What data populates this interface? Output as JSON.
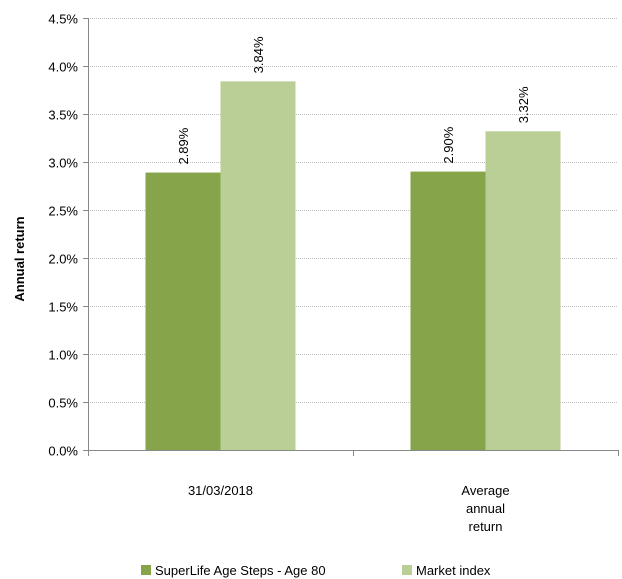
{
  "chart_data": {
    "type": "bar",
    "categories": [
      [
        "31/03/2018"
      ],
      [
        "Average",
        "annual",
        "return"
      ]
    ],
    "series": [
      {
        "name": "SuperLife Age Steps - Age 80",
        "values": [
          2.89,
          2.9
        ],
        "labels": [
          "2.89%",
          "2.90%"
        ],
        "color": "#86a44a"
      },
      {
        "name": "Market index",
        "values": [
          3.84,
          3.32
        ],
        "labels": [
          "3.84%",
          "3.32%"
        ],
        "color": "#b9cf96"
      }
    ],
    "ylabel": "Annual return",
    "xlabel": "",
    "ylim": [
      0,
      4.5
    ],
    "yticks": [
      0,
      0.5,
      1.0,
      1.5,
      2.0,
      2.5,
      3.0,
      3.5,
      4.0,
      4.5
    ],
    "ytick_labels": [
      "0.0%",
      "0.5%",
      "1.0%",
      "1.5%",
      "2.0%",
      "2.5%",
      "3.0%",
      "3.5%",
      "4.0%",
      "4.5%"
    ],
    "grid": true,
    "gridline_color": "#bfbfbf",
    "legend_position": "bottom"
  }
}
